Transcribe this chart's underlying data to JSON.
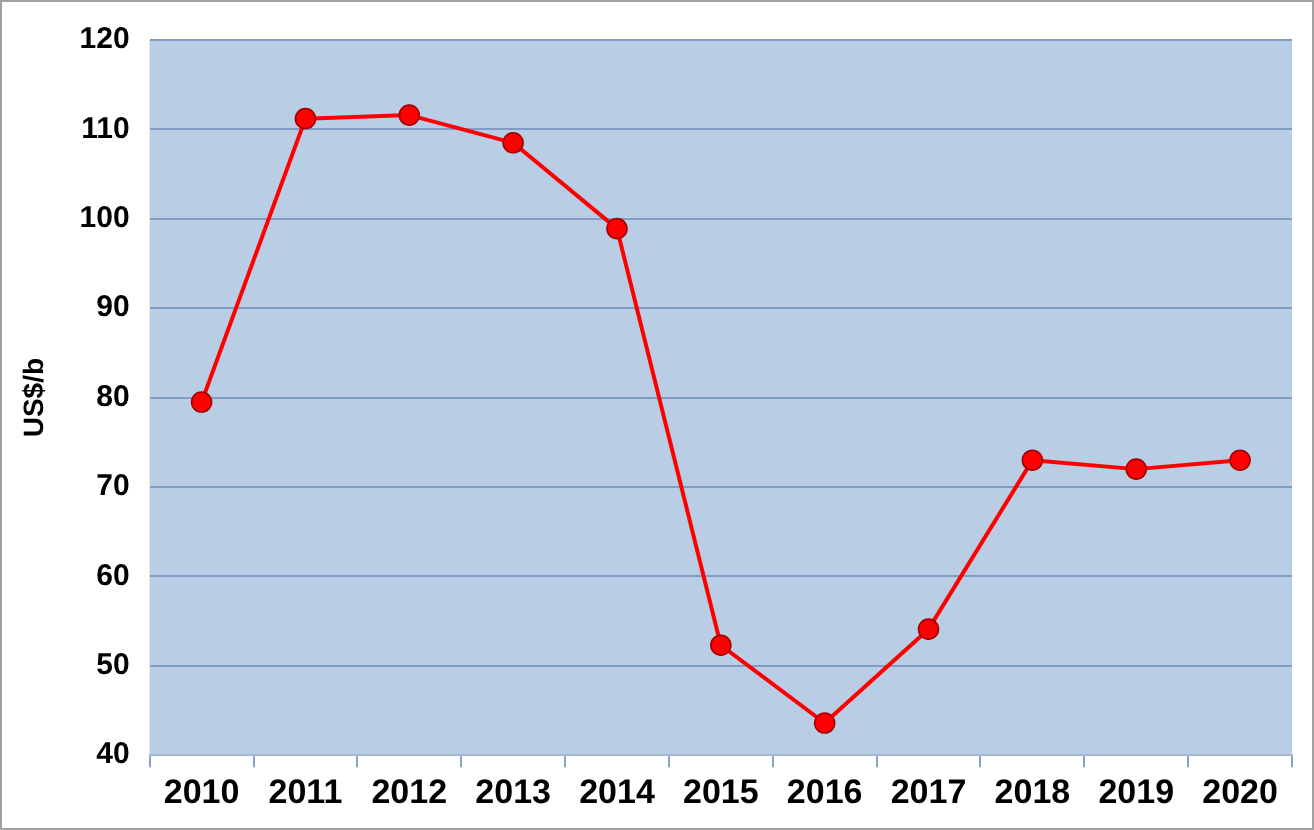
{
  "chart_data": {
    "type": "line",
    "ylabel": "US$/b",
    "categories": [
      "2010",
      "2011",
      "2012",
      "2013",
      "2014",
      "2015",
      "2016",
      "2017",
      "2018",
      "2019",
      "2020"
    ],
    "series": [
      {
        "color": "#ff0000",
        "values": [
          79.5,
          111.2,
          111.6,
          108.5,
          98.9,
          52.3,
          43.6,
          54.1,
          73.0,
          72.0,
          73.0
        ]
      }
    ],
    "ylim": [
      40,
      120
    ],
    "yticks": [
      40,
      50,
      60,
      70,
      80,
      90,
      100,
      110,
      120
    ],
    "grid": "y",
    "legend": false,
    "marker": "circle",
    "line_style": "solid"
  }
}
